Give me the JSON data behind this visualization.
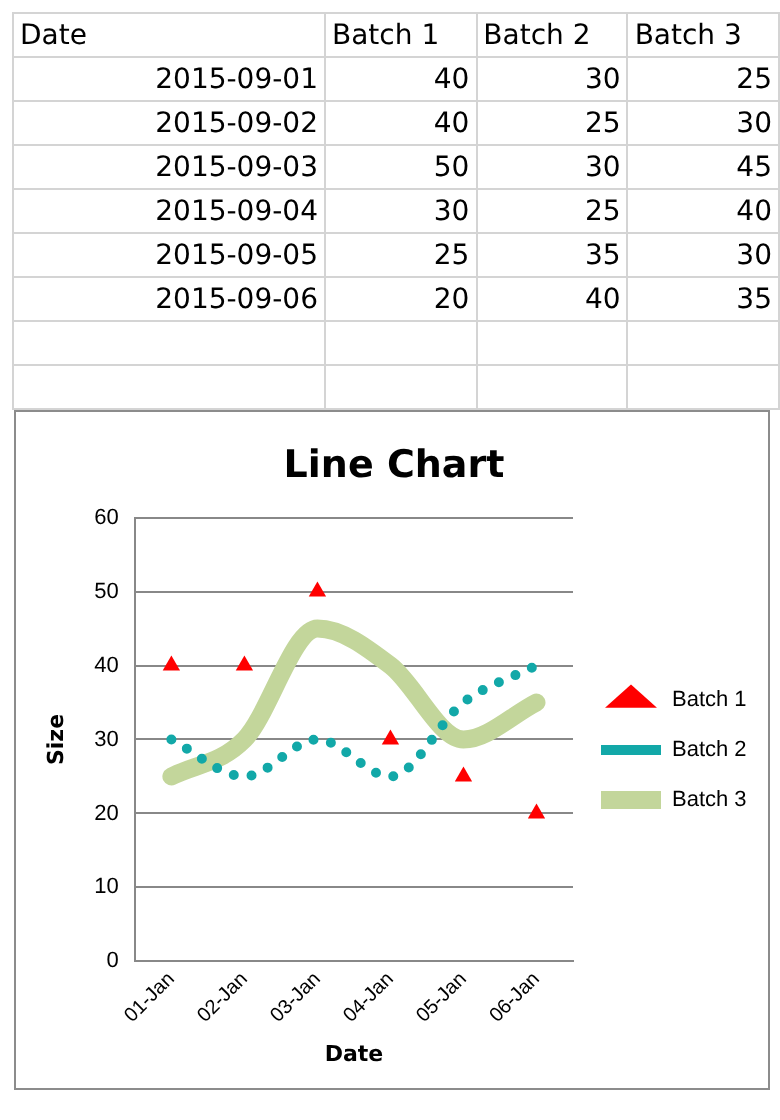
{
  "chart_data": [
    {
      "type": "other",
      "annotations": [
        "Date",
        "Batch 1",
        "Batch 2",
        "Batch 3",
        "2015-09-01",
        "40",
        "30",
        "25",
        "2015-09-02",
        "40",
        "25",
        "30",
        "2015-09-03",
        "50",
        "30",
        "45",
        "2015-09-04",
        "30",
        "25",
        "40",
        "2015-09-05",
        "25",
        "35",
        "30",
        "2015-09-06",
        "20",
        "40",
        "35"
      ]
    },
    {
      "type": "line",
      "title": "Line Chart",
      "xlabel": "Date",
      "ylabel": "Size",
      "categories": [
        "01-Jan",
        "02-Jan",
        "03-Jan",
        "04-Jan",
        "05-Jan",
        "06-Jan"
      ],
      "series": [
        {
          "name": "Batch 1",
          "type": "scatter",
          "color": "#ff0000",
          "marker": "triangle",
          "values": [
            40,
            40,
            50,
            30,
            25,
            20
          ]
        },
        {
          "name": "Batch 2",
          "type": "line",
          "color": "#12a8a8",
          "line_style": "dotted",
          "marker": "none",
          "values": [
            30,
            25,
            30,
            25,
            35,
            40
          ]
        },
        {
          "name": "Batch 3",
          "type": "line",
          "color": "#c3d69b",
          "line_style": "solid",
          "marker": "none",
          "values": [
            25,
            30,
            45,
            40,
            30,
            35
          ]
        }
      ],
      "ylim": [
        0,
        60
      ],
      "yticks": [
        0,
        10,
        20,
        30,
        40,
        50,
        60
      ],
      "grid": "y",
      "legend": "right"
    }
  ]
}
